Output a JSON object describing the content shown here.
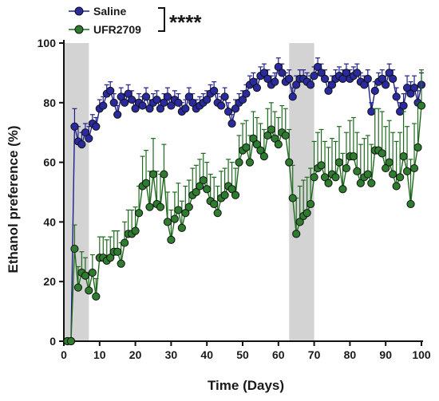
{
  "chart_data": {
    "type": "line",
    "xlabel": "Time (Days)",
    "ylabel": "Ethanol preference (%)",
    "xlim": [
      0,
      100
    ],
    "ylim": [
      0,
      100
    ],
    "xticks": [
      0,
      10,
      20,
      30,
      40,
      50,
      60,
      70,
      80,
      90,
      100
    ],
    "yticks": [
      0,
      20,
      40,
      60,
      80,
      100
    ],
    "shaded_regions": [
      [
        0,
        7
      ],
      [
        63,
        70
      ]
    ],
    "legend": {
      "placement": "top-left"
    },
    "significance": "****",
    "series": [
      {
        "name": "Saline",
        "color": "#1f1f8c",
        "marker_fill": "#2a2aa0",
        "x": [
          1,
          2,
          3,
          4,
          5,
          6,
          7,
          8,
          9,
          10,
          11,
          12,
          13,
          14,
          15,
          16,
          17,
          18,
          19,
          20,
          21,
          22,
          23,
          24,
          25,
          26,
          27,
          28,
          29,
          30,
          31,
          32,
          33,
          34,
          35,
          36,
          37,
          38,
          39,
          40,
          41,
          42,
          43,
          44,
          45,
          46,
          47,
          48,
          49,
          50,
          51,
          52,
          53,
          54,
          55,
          56,
          57,
          58,
          59,
          60,
          61,
          62,
          63,
          64,
          65,
          66,
          67,
          68,
          69,
          70,
          71,
          72,
          73,
          74,
          75,
          76,
          77,
          78,
          79,
          80,
          81,
          82,
          83,
          84,
          85,
          86,
          87,
          88,
          89,
          90,
          91,
          92,
          93,
          94,
          95,
          96,
          97,
          98,
          99,
          100
        ],
        "y": [
          0,
          0,
          72,
          67,
          66,
          70,
          68,
          73,
          72,
          78,
          79,
          83,
          84,
          80,
          76,
          82,
          80,
          83,
          81,
          78,
          80,
          79,
          82,
          78,
          80,
          81,
          78,
          80,
          82,
          79,
          81,
          80,
          77,
          78,
          82,
          80,
          78,
          79,
          80,
          81,
          83,
          84,
          80,
          79,
          82,
          77,
          73,
          78,
          80,
          81,
          83,
          86,
          87,
          85,
          89,
          90,
          88,
          86,
          87,
          92,
          90,
          87,
          88,
          82,
          86,
          88,
          88,
          87,
          86,
          89,
          92,
          90,
          88,
          84,
          86,
          88,
          89,
          88,
          90,
          88,
          89,
          90,
          87,
          86,
          88,
          77,
          84,
          87,
          88,
          86,
          90,
          88,
          82,
          77,
          79,
          85,
          83,
          85,
          80,
          86
        ],
        "err": [
          0,
          0,
          6,
          5,
          4,
          3,
          4,
          3,
          3,
          3,
          3,
          3,
          3,
          3,
          3,
          3,
          3,
          3,
          3,
          3,
          3,
          3,
          3,
          3,
          3,
          3,
          3,
          3,
          3,
          3,
          3,
          3,
          3,
          3,
          3,
          3,
          3,
          3,
          3,
          3,
          3,
          3,
          3,
          3,
          3,
          3,
          3,
          3,
          3,
          3,
          3,
          3,
          3,
          3,
          3,
          3,
          3,
          3,
          3,
          3,
          3,
          3,
          3,
          3,
          3,
          3,
          3,
          3,
          3,
          3,
          3,
          3,
          3,
          3,
          3,
          3,
          3,
          3,
          3,
          3,
          3,
          3,
          3,
          3,
          3,
          3,
          3,
          3,
          3,
          3,
          3,
          3,
          3,
          3,
          4,
          4,
          4,
          4,
          4,
          4
        ]
      },
      {
        "name": "UFR2709",
        "color": "#1e6b1e",
        "marker_fill": "#2e7d2e",
        "x": [
          1,
          2,
          3,
          4,
          5,
          6,
          7,
          8,
          9,
          10,
          11,
          12,
          13,
          14,
          15,
          16,
          17,
          18,
          19,
          20,
          21,
          22,
          23,
          24,
          25,
          26,
          27,
          28,
          29,
          30,
          31,
          32,
          33,
          34,
          35,
          36,
          37,
          38,
          39,
          40,
          41,
          42,
          43,
          44,
          45,
          46,
          47,
          48,
          49,
          50,
          51,
          52,
          53,
          54,
          55,
          56,
          57,
          58,
          59,
          60,
          61,
          62,
          63,
          64,
          65,
          66,
          67,
          68,
          69,
          70,
          71,
          72,
          73,
          74,
          75,
          76,
          77,
          78,
          79,
          80,
          81,
          82,
          83,
          84,
          85,
          86,
          87,
          88,
          89,
          90,
          91,
          92,
          93,
          94,
          95,
          96,
          97,
          98,
          99,
          100
        ],
        "y": [
          0,
          0,
          31,
          18,
          23,
          22,
          17,
          23,
          15,
          28,
          28,
          27,
          28,
          30,
          30,
          26,
          33,
          36,
          36,
          37,
          43,
          52,
          53,
          45,
          56,
          46,
          45,
          56,
          40,
          34,
          41,
          44,
          38,
          43,
          45,
          49,
          50,
          52,
          54,
          51,
          47,
          46,
          43,
          48,
          49,
          52,
          51,
          49,
          60,
          64,
          65,
          60,
          68,
          66,
          64,
          62,
          69,
          71,
          68,
          66,
          70,
          69,
          60,
          48,
          36,
          40,
          42,
          43,
          46,
          55,
          58,
          59,
          55,
          53,
          56,
          55,
          60,
          51,
          58,
          62,
          62,
          57,
          53,
          55,
          56,
          53,
          64,
          64,
          63,
          58,
          60,
          56,
          52,
          55,
          62,
          57,
          46,
          58,
          65,
          79
        ],
        "err": [
          0,
          0,
          8,
          7,
          7,
          6,
          6,
          6,
          6,
          7,
          7,
          7,
          7,
          7,
          7,
          7,
          7,
          8,
          8,
          8,
          9,
          10,
          11,
          12,
          12,
          11,
          11,
          10,
          10,
          10,
          9,
          9,
          9,
          9,
          9,
          9,
          9,
          9,
          9,
          9,
          9,
          9,
          9,
          9,
          9,
          9,
          9,
          9,
          9,
          9,
          9,
          9,
          9,
          9,
          9,
          9,
          9,
          9,
          9,
          9,
          9,
          9,
          11,
          11,
          12,
          12,
          12,
          12,
          12,
          12,
          12,
          12,
          12,
          12,
          12,
          12,
          12,
          12,
          12,
          12,
          13,
          13,
          13,
          13,
          13,
          13,
          14,
          14,
          14,
          14,
          14,
          14,
          15,
          15,
          15,
          15,
          15,
          15,
          15,
          12
        ]
      }
    ]
  }
}
